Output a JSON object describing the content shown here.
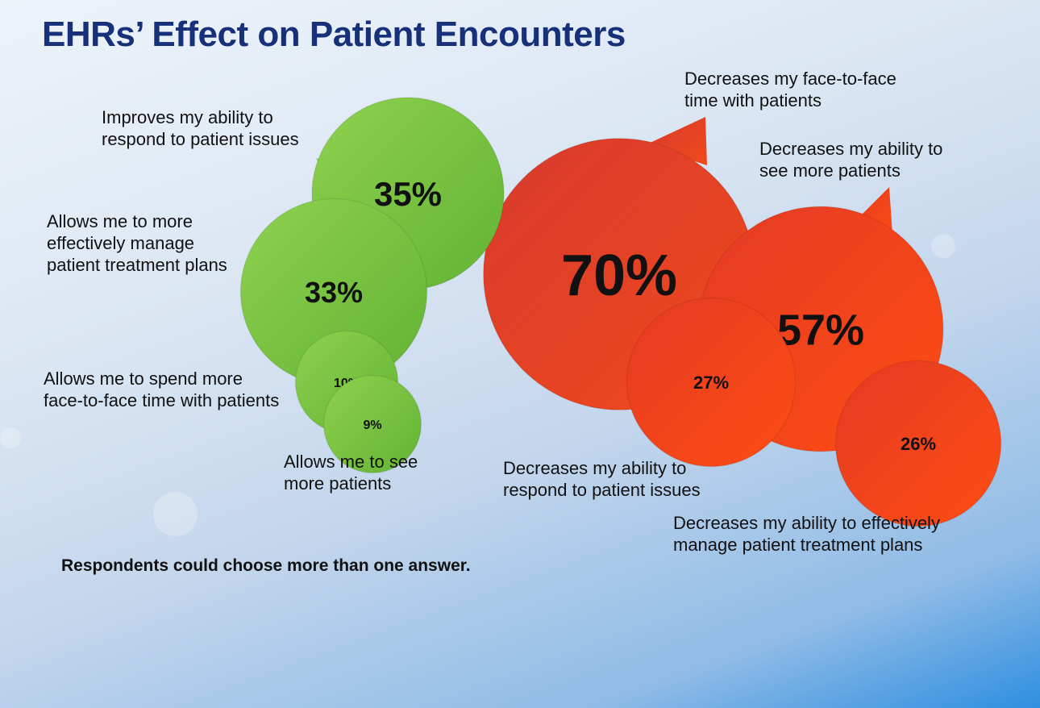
{
  "title": "EHRs’ Effect on Patient Encounters",
  "note": "Respondents could choose more than one answer.",
  "colors": {
    "positive": "#7cc242",
    "negative": "#e63a23",
    "title": "#16317a"
  },
  "chart_data": {
    "type": "bubble",
    "title": "EHRs’ Effect on Patient Encounters",
    "series": [
      {
        "group": "positive",
        "items": [
          {
            "label": "Improves my ability to\nrespond to patient issues",
            "value": 35,
            "display": "35%"
          },
          {
            "label": "Allows me to more\neffectively manage\npatient treatment plans",
            "value": 33,
            "display": "33%"
          },
          {
            "label": "Allows me to spend more\nface-to-face time with patients",
            "value": 10,
            "display": "10%"
          },
          {
            "label": "Allows me to see\nmore patients",
            "value": 9,
            "display": "9%"
          }
        ]
      },
      {
        "group": "negative",
        "items": [
          {
            "label": "Decreases my face-to-face\ntime with patients",
            "value": 70,
            "display": "70%"
          },
          {
            "label": "Decreases my ability to\nsee more patients",
            "value": 57,
            "display": "57%"
          },
          {
            "label": "Decreases my ability to\nrespond to patient issues",
            "value": 27,
            "display": "27%"
          },
          {
            "label": "Decreases my ability to effectively\nmanage patient treatment plans",
            "value": 26,
            "display": "26%"
          }
        ]
      }
    ]
  }
}
